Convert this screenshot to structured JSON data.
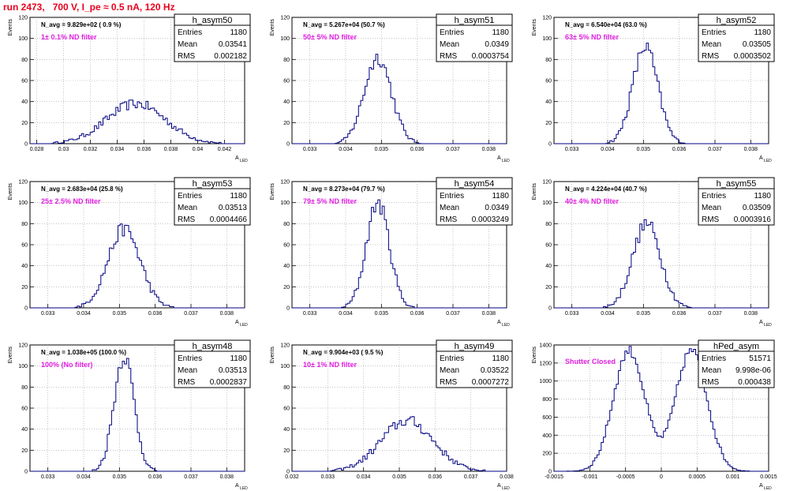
{
  "title": "run 2473,   700 V, I_pe ≈ 0.5 nA, 120 Hz",
  "y_axis_title": "Events",
  "x_axis_title": "A",
  "x_axis_subscript": "LED",
  "stats_labels": {
    "entries": "Entries",
    "mean": "Mean",
    "rms": "RMS"
  },
  "colors": {
    "histogram": "#000080",
    "filter_text": "#e020e0",
    "title": "#e8001c",
    "grid": "#a0a0a0"
  },
  "chart_data": [
    {
      "type": "histogram",
      "name": "h_asym50",
      "n_avg": "N_avg = 9.829e+02 ( 0.9 %)",
      "filter": "1± 0.1% ND filter",
      "entries": "1180",
      "mean": "0.03541",
      "rms": "0.002182",
      "xlim": [
        0.0275,
        0.0435
      ],
      "ylim": [
        0,
        120
      ],
      "xticks": [
        0.028,
        0.03,
        0.032,
        0.034,
        0.036,
        0.038,
        0.04,
        0.042
      ],
      "xtick_labels": [
        "0.028",
        "0.03",
        "0.032",
        "0.034",
        "0.036",
        "0.038",
        "0.04",
        "0.042"
      ],
      "yticks": [
        0,
        20,
        40,
        60,
        80,
        100,
        120
      ],
      "center": 0.0354,
      "sigma": 0.0022,
      "peak": 38
    },
    {
      "type": "histogram",
      "name": "h_asym51",
      "n_avg": "N_avg = 5.267e+04 (50.7 %)",
      "filter": "50± 5% ND filter",
      "entries": "1180",
      "mean": "0.0349",
      "rms": "0.0003754",
      "xlim": [
        0.0325,
        0.0385
      ],
      "ylim": [
        0,
        120
      ],
      "xticks": [
        0.033,
        0.034,
        0.035,
        0.036,
        0.037,
        0.038
      ],
      "xtick_labels": [
        "0.033",
        "0.034",
        "0.035",
        "0.036",
        "0.037",
        "0.038"
      ],
      "yticks": [
        0,
        20,
        40,
        60,
        80,
        100,
        120
      ],
      "center": 0.0349,
      "sigma": 0.00038,
      "peak": 82
    },
    {
      "type": "histogram",
      "name": "h_asym52",
      "n_avg": "N_avg = 6.540e+04 (63.0 %)",
      "filter": "63± 5% ND filter",
      "entries": "1180",
      "mean": "0.03505",
      "rms": "0.0003502",
      "xlim": [
        0.0325,
        0.0385
      ],
      "ylim": [
        0,
        120
      ],
      "xticks": [
        0.033,
        0.034,
        0.035,
        0.036,
        0.037,
        0.038
      ],
      "xtick_labels": [
        "0.033",
        "0.034",
        "0.035",
        "0.036",
        "0.037",
        "0.038"
      ],
      "yticks": [
        0,
        20,
        40,
        60,
        80,
        100,
        120
      ],
      "center": 0.03505,
      "sigma": 0.00035,
      "peak": 92
    },
    {
      "type": "histogram",
      "name": "h_asym53",
      "n_avg": "N_avg = 2.683e+04 (25.8 %)",
      "filter": "25± 2.5% ND filter",
      "entries": "1180",
      "mean": "0.03513",
      "rms": "0.0004466",
      "xlim": [
        0.0325,
        0.0385
      ],
      "ylim": [
        0,
        120
      ],
      "xticks": [
        0.033,
        0.034,
        0.035,
        0.036,
        0.037,
        0.038
      ],
      "xtick_labels": [
        "0.033",
        "0.034",
        "0.035",
        "0.036",
        "0.037",
        "0.038"
      ],
      "yticks": [
        0,
        20,
        40,
        60,
        80,
        100,
        120
      ],
      "center": 0.03513,
      "sigma": 0.00045,
      "peak": 75
    },
    {
      "type": "histogram",
      "name": "h_asym54",
      "n_avg": "N_avg = 8.273e+04 (79.7 %)",
      "filter": "79± 5% ND filter",
      "entries": "1180",
      "mean": "0.0349",
      "rms": "0.0003249",
      "xlim": [
        0.0325,
        0.0385
      ],
      "ylim": [
        0,
        120
      ],
      "xticks": [
        0.033,
        0.034,
        0.035,
        0.036,
        0.037,
        0.038
      ],
      "xtick_labels": [
        "0.033",
        "0.034",
        "0.035",
        "0.036",
        "0.037",
        "0.038"
      ],
      "yticks": [
        0,
        20,
        40,
        60,
        80,
        100,
        120
      ],
      "center": 0.0349,
      "sigma": 0.00032,
      "peak": 100
    },
    {
      "type": "histogram",
      "name": "h_asym55",
      "n_avg": "N_avg = 4.224e+04 (40.7 %)",
      "filter": "40± 4% ND filter",
      "entries": "1180",
      "mean": "0.03509",
      "rms": "0.0003916",
      "xlim": [
        0.0325,
        0.0385
      ],
      "ylim": [
        0,
        120
      ],
      "xticks": [
        0.033,
        0.034,
        0.035,
        0.036,
        0.037,
        0.038
      ],
      "xtick_labels": [
        "0.033",
        "0.034",
        "0.035",
        "0.036",
        "0.037",
        "0.038"
      ],
      "yticks": [
        0,
        20,
        40,
        60,
        80,
        100,
        120
      ],
      "center": 0.03509,
      "sigma": 0.00039,
      "peak": 80
    },
    {
      "type": "histogram",
      "name": "h_asym48",
      "n_avg": "N_avg = 1.038e+05 (100.0 %)",
      "filter": "100% (No filter)",
      "entries": "1180",
      "mean": "0.03513",
      "rms": "0.0002837",
      "xlim": [
        0.0325,
        0.0385
      ],
      "ylim": [
        0,
        120
      ],
      "xticks": [
        0.033,
        0.034,
        0.035,
        0.036,
        0.037,
        0.038
      ],
      "xtick_labels": [
        "0.033",
        "0.034",
        "0.035",
        "0.036",
        "0.037",
        "0.038"
      ],
      "yticks": [
        0,
        20,
        40,
        60,
        80,
        100,
        120
      ],
      "center": 0.03513,
      "sigma": 0.00028,
      "peak": 110
    },
    {
      "type": "histogram",
      "name": "h_asym49",
      "n_avg": "N_avg = 9.904e+03 ( 9.5 %)",
      "filter": "10± 1% ND filter",
      "entries": "1180",
      "mean": "0.03522",
      "rms": "0.0007272",
      "xlim": [
        0.032,
        0.038
      ],
      "ylim": [
        0,
        120
      ],
      "xticks": [
        0.032,
        0.033,
        0.034,
        0.035,
        0.036,
        0.037,
        0.038
      ],
      "xtick_labels": [
        "0.032",
        "0.033",
        "0.034",
        "0.035",
        "0.036",
        "0.037",
        "0.038"
      ],
      "yticks": [
        0,
        20,
        40,
        60,
        80,
        100,
        120
      ],
      "center": 0.03522,
      "sigma": 0.00073,
      "peak": 48
    },
    {
      "type": "histogram",
      "name": "hPed_asym",
      "n_avg": "",
      "filter": "Shutter Closed",
      "entries": "51571",
      "mean": "9.998e-06",
      "rms": "0.000438",
      "xlim": [
        -0.0015,
        0.0015
      ],
      "ylim": [
        0,
        1400
      ],
      "xticks": [
        -0.0015,
        -0.001,
        -0.0005,
        0,
        0.0005,
        0.001,
        0.0015
      ],
      "xtick_labels": [
        "-0.0015",
        "-0.001",
        "-0.0005",
        "0",
        "0.0005",
        "0.001",
        "0.0015"
      ],
      "yticks": [
        0,
        200,
        400,
        600,
        800,
        1000,
        1200,
        1400
      ],
      "bimodal": true,
      "centers": [
        -0.00045,
        0.00042
      ],
      "sigma": 0.00022,
      "peak": 1340
    }
  ]
}
